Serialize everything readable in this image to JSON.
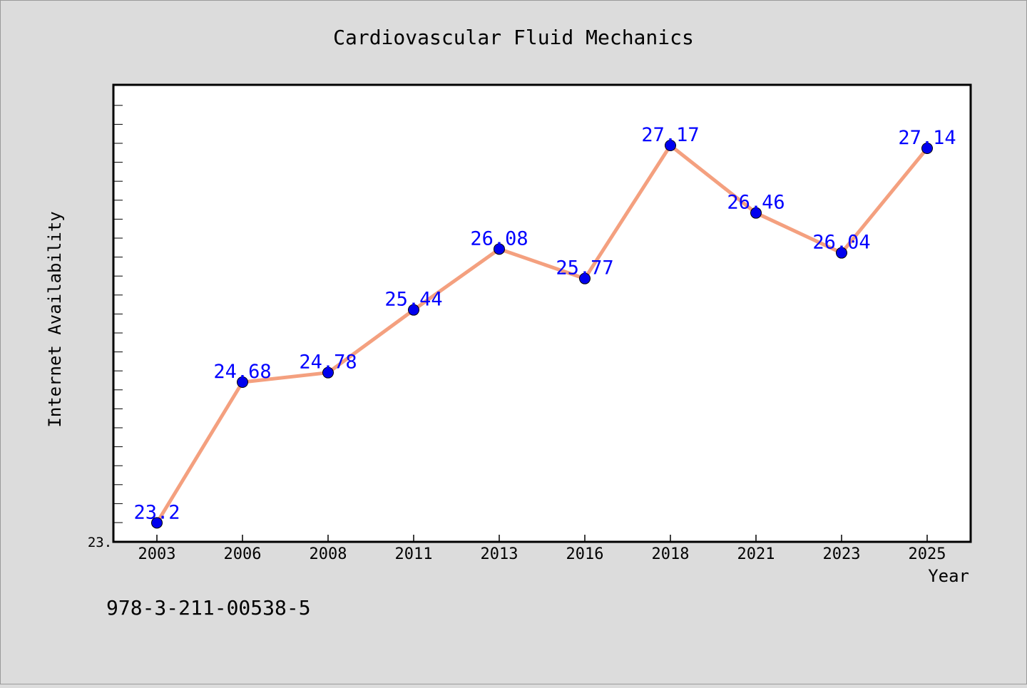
{
  "isbn": "978-3-211-00538-5",
  "chart_data": {
    "type": "line",
    "title": "Cardiovascular Fluid Mechanics",
    "xlabel": "Year",
    "ylabel": "Internet Availability",
    "y_tick_label": "23.",
    "categories": [
      "2003",
      "2006",
      "2008",
      "2011",
      "2013",
      "2016",
      "2018",
      "2021",
      "2023",
      "2025"
    ],
    "series": [
      {
        "values": [
          23.2,
          24.68,
          24.78,
          25.44,
          26.08,
          25.77,
          27.17,
          26.46,
          26.04,
          27.14
        ],
        "labels": [
          "23.2",
          "24.68",
          "24.78",
          "25.44",
          "26.08",
          "25.77",
          "27.17",
          "26.46",
          "26.04",
          "27.14"
        ]
      }
    ],
    "ylim": [
      23.0,
      27.8
    ],
    "grid": false,
    "legend": "none",
    "colors": {
      "line": "#f4a07f",
      "marker": "#0000ee",
      "data_label": "#0000ff",
      "plot_background": "#ffffff",
      "figure_background": "#dcdcdc"
    }
  }
}
